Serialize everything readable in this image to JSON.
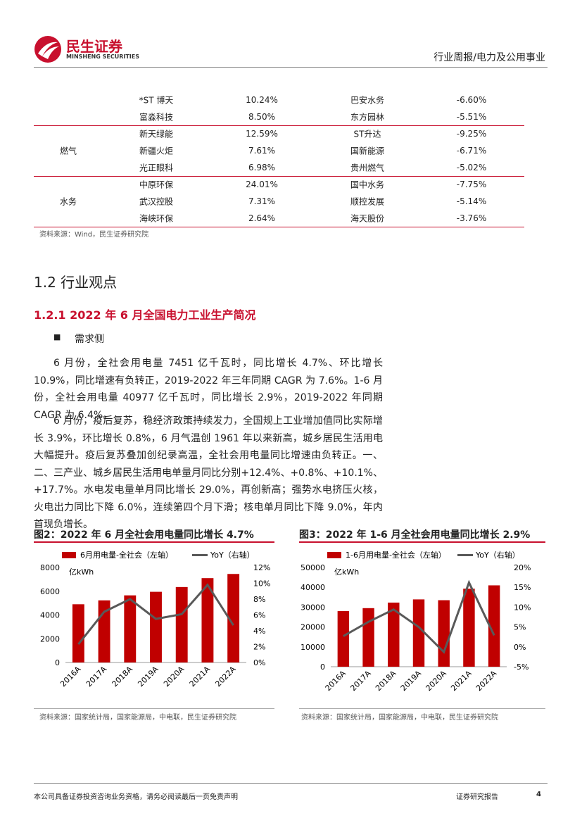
{
  "header": {
    "brand": "民生证券",
    "brand_en": "MINSHENG SECURITIES",
    "category": "行业周报/电力及公用事业"
  },
  "table": {
    "groups": [
      {
        "rows": [
          [
            "*ST 博天",
            "10.24%",
            "巴安水务",
            "-6.60%"
          ],
          [
            "富淼科技",
            "8.50%",
            "东方园林",
            "-5.51%"
          ]
        ]
      },
      {
        "name": "燃气",
        "rows": [
          [
            "新天绿能",
            "12.59%",
            "ST升达",
            "-9.25%"
          ],
          [
            "新疆火炬",
            "7.61%",
            "国新能源",
            "-6.71%"
          ],
          [
            "光正眼科",
            "6.98%",
            "贵州燃气",
            "-5.02%"
          ]
        ]
      },
      {
        "name": "水务",
        "rows": [
          [
            "中原环保",
            "24.01%",
            "国中水务",
            "-7.75%"
          ],
          [
            "武汉控股",
            "7.31%",
            "顺控发展",
            "-5.14%"
          ],
          [
            "海峡环保",
            "2.64%",
            "海天股份",
            "-3.76%"
          ]
        ]
      }
    ],
    "source": "资料来源：Wind，民生证券研究院"
  },
  "section": {
    "heading": "1.2 行业观点",
    "subheading": "1.2.1 2022 年 6 月全国电力工业生产简况",
    "bullet": "需求侧",
    "paragraphs": [
      "6 月份，全社会用电量 7451 亿千瓦时，同比增长 4.7%、环比增长 10.9%，同比增速有负转正，2019-2022 年三年同期 CAGR 为 7.6%。1-6 月份，全社会用电量 40977 亿千瓦时，同比增长 2.9%，2019-2022 年同期 CAGR 为 6.4%。",
      "6 月份，疫后复苏，稳经济政策持续发力，全国规上工业增加值同比实际增长 3.9%，环比增长 0.8%，6 月气温创 1961 年以来新高，城乡居民生活用电大幅提升。疫后复苏叠加创纪录高温，全社会用电量同比增速由负转正。一、二、三产业、城乡居民生活用电单量月同比分别+12.4%、+0.8%、+10.1%、+17.7%。水电发电量单月同比增长 29.0%，再创新高；强势水电挤压火核，火电出力同比下降 6.0%，连续第四个月下滑；核电单月同比下降 9.0%，年内首现负增长。"
    ]
  },
  "figures": [
    {
      "caption": "图2：2022 年 6 月全社会用电量同比增长 4.7%",
      "source": "资料来源：国家统计局，国家能源局，中电联，民生证券研究院",
      "chart_data": {
        "type": "combo",
        "ylabel": "亿kWh",
        "categories": [
          "2016A",
          "2017A",
          "2018A",
          "2019A",
          "2020A",
          "2021A",
          "2022A"
        ],
        "series": [
          {
            "name": "6月用电量-全社会（左轴）",
            "type": "bar",
            "color": "#c00000",
            "values": [
              4900,
              5230,
              5650,
              5950,
              6350,
              7100,
              7451
            ]
          },
          {
            "name": "YoY（右轴）",
            "type": "line",
            "axis": "y2",
            "color": "#595959",
            "values": [
              2.3,
              6.4,
              8.0,
              5.5,
              6.1,
              9.8,
              4.7
            ]
          }
        ],
        "ylim": [
          0,
          8000
        ],
        "yticks": [
          0,
          2000,
          4000,
          6000,
          8000
        ],
        "y2lim": [
          0,
          12
        ],
        "y2ticks": [
          {
            "value": 0,
            "label": "0%"
          },
          {
            "value": 2,
            "label": "2%"
          },
          {
            "value": 4,
            "label": "4%"
          },
          {
            "value": 6,
            "label": "6%"
          },
          {
            "value": 8,
            "label": "8%"
          },
          {
            "value": 10,
            "label": "10%"
          },
          {
            "value": 12,
            "label": "12%"
          }
        ]
      }
    },
    {
      "caption": "图3：2022 年 1-6 月全社会用电量同比增长 2.9%",
      "source": "资料来源：国家统计局，国家能源局，中电联，民生证券研究院",
      "chart_data": {
        "type": "combo",
        "ylabel": "亿kWh",
        "categories": [
          "2016A",
          "2017A",
          "2018A",
          "2019A",
          "2020A",
          "2021A",
          "2022A"
        ],
        "series": [
          {
            "name": "1-6月用电量-全社会（左轴）",
            "type": "bar",
            "color": "#c00000",
            "values": [
              28000,
              29500,
              32300,
              33900,
              33500,
              39300,
              40977
            ]
          },
          {
            "name": "YoY（右轴）",
            "type": "line",
            "axis": "y2",
            "color": "#595959",
            "values": [
              2.7,
              6.3,
              9.4,
              5.0,
              -1.3,
              16.2,
              2.9
            ]
          }
        ],
        "ylim": [
          0,
          50000
        ],
        "yticks": [
          0,
          10000,
          20000,
          30000,
          40000,
          50000
        ],
        "y2lim": [
          -5,
          20
        ],
        "y2ticks": [
          {
            "value": -5,
            "label": "-5%"
          },
          {
            "value": 0,
            "label": "0%"
          },
          {
            "value": 5,
            "label": "5%"
          },
          {
            "value": 10,
            "label": "10%"
          },
          {
            "value": 15,
            "label": "15%"
          },
          {
            "value": 20,
            "label": "20%"
          }
        ]
      }
    }
  ],
  "footer": {
    "disclaimer": "本公司具备证券投资咨询业务资格，请务必阅读最后一页免责声明",
    "label": "证券研究报告",
    "page": 4
  }
}
